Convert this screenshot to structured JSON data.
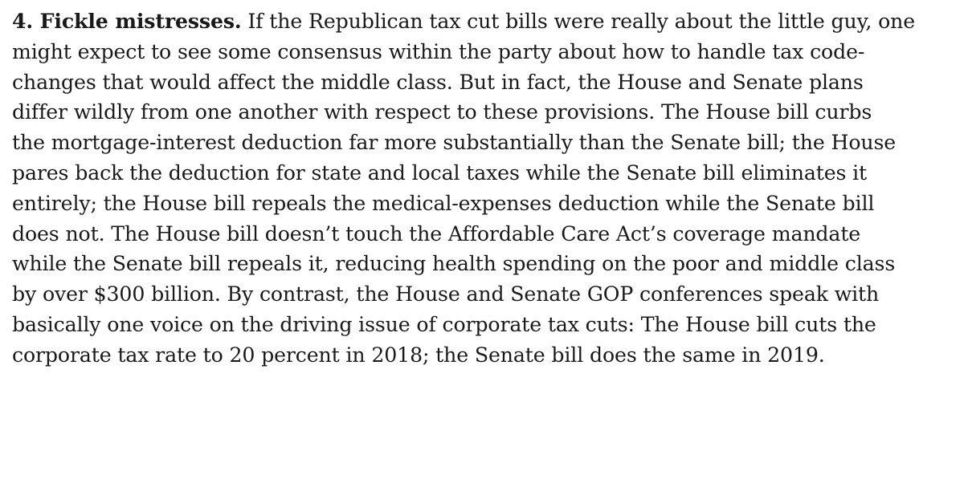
{
  "article": {
    "section_heading": "4. Fickle mistresses.",
    "lines": [
      " If the Republican tax cut bills were really about the little guy, one",
      "might expect to see some consensus within the party about how to handle tax code-",
      "changes that would affect the middle class. But in fact, the House and Senate plans",
      "differ wildly from one another with respect to these provisions. The House bill curbs",
      "the mortgage-interest deduction far more substantially than the Senate bill; the House",
      "pares back the deduction for state and local taxes while the Senate bill eliminates it",
      "entirely; the House bill repeals the medical-expenses deduction while the Senate bill",
      "does not. The House bill doesn’t touch the Affordable Care Act’s coverage mandate",
      "while the Senate bill repeals it, reducing health spending on the poor and middle class",
      "by over $300 billion. By contrast, the House and Senate GOP conferences speak with",
      "basically one voice on the driving issue of corporate tax cuts: The House bill cuts the",
      "corporate tax rate to 20 percent in 2018; the Senate bill does the same in 2019."
    ]
  }
}
